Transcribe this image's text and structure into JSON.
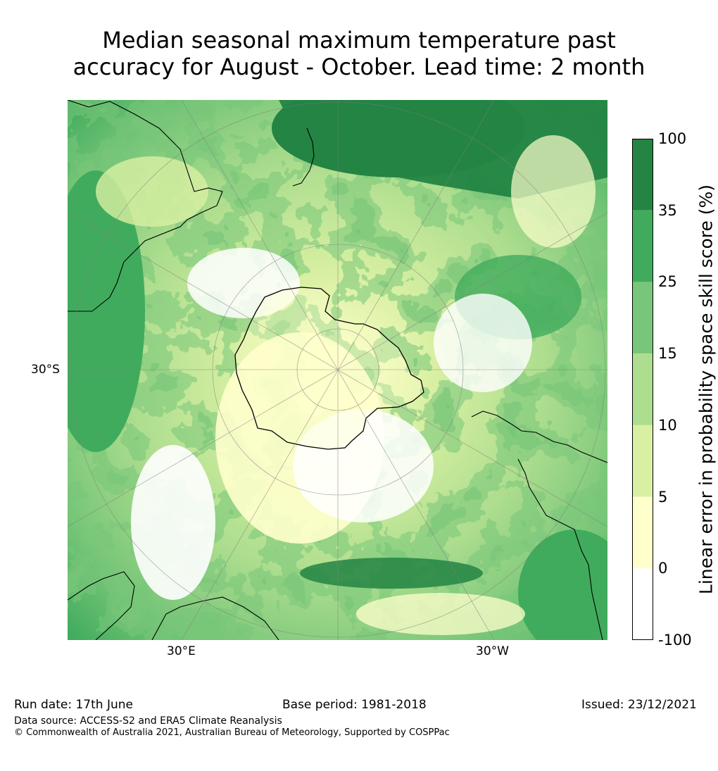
{
  "title_line1": "Median seasonal maximum temperature past",
  "title_line2": "accuracy for August - October. Lead time: 2 month",
  "map": {
    "projection": "south-polar-stereographic",
    "labels": {
      "lat_30s": "30°S",
      "lon_30e": "30°E",
      "lon_30w": "30°W"
    },
    "colors": {
      "land_outline": "#000000",
      "gridline": "#808080"
    }
  },
  "colorbar": {
    "title": "Linear error in probability space skill score (%)",
    "ticks": [
      "100",
      "35",
      "25",
      "15",
      "10",
      "5",
      "0",
      "-100"
    ],
    "bins": [
      {
        "range": "35 to 100",
        "color": "#238443"
      },
      {
        "range": "25 to 35",
        "color": "#41ab5d"
      },
      {
        "range": "15 to 25",
        "color": "#78c679"
      },
      {
        "range": "10 to 15",
        "color": "#addd8e"
      },
      {
        "range": "5 to 10",
        "color": "#d9f0a3"
      },
      {
        "range": "0 to 5",
        "color": "#ffffcc"
      },
      {
        "range": "-100 to 0",
        "color": "#ffffff"
      }
    ]
  },
  "footer": {
    "run_date": "Run date: 17th June",
    "base_period": "Base period: 1981-2018",
    "issued": "Issued: 23/12/2021",
    "data_source": "Data source: ACCESS-S2 and ERA5 Climate Reanalysis",
    "copyright": "© Commonwealth of Australia 2021, Australian Bureau of Meteorology, Supported by COSPPac"
  }
}
